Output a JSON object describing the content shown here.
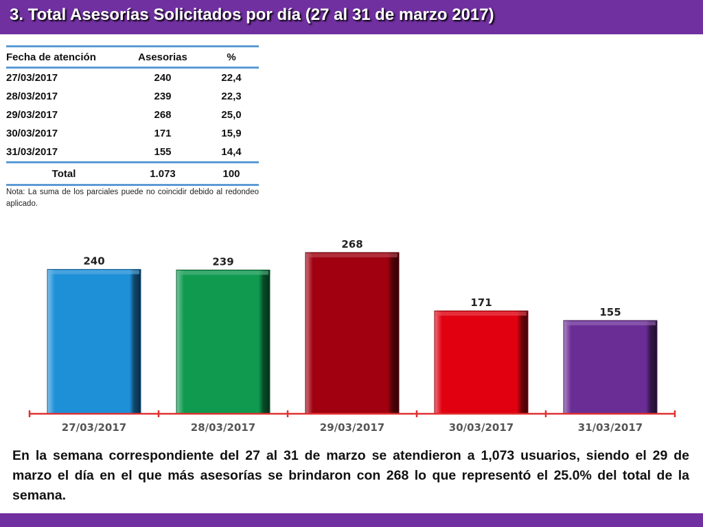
{
  "header": {
    "title": "3.  Total Asesorías Solicitados por día  (27 al 31 de marzo 2017)"
  },
  "table": {
    "headers": [
      "Fecha de atención",
      "Asesorias",
      "%"
    ],
    "rows": [
      [
        "27/03/2017",
        "240",
        "22,4"
      ],
      [
        "28/03/2017",
        "239",
        "22,3"
      ],
      [
        "29/03/2017",
        "268",
        "25,0"
      ],
      [
        "30/03/2017",
        "171",
        "15,9"
      ],
      [
        "31/03/2017",
        "155",
        "14,4"
      ]
    ],
    "total": [
      "Total",
      "1.073",
      "100"
    ]
  },
  "note": "Nota: La suma de los parciales puede no coincidir debido al redondeo aplicado.",
  "chart_data": {
    "type": "bar",
    "categories": [
      "27/03/2017",
      "28/03/2017",
      "29/03/2017",
      "30/03/2017",
      "31/03/2017"
    ],
    "values": [
      240,
      239,
      268,
      171,
      155
    ],
    "data_labels": [
      "240",
      "239",
      "268",
      "171",
      "155"
    ],
    "bar_colors": [
      "#1e90d8",
      "#109a50",
      "#a00010",
      "#e00010",
      "#6a2d96"
    ],
    "axis_color": "#e03030",
    "title": "",
    "xlabel": "",
    "ylabel": "",
    "ylim": [
      0,
      300
    ],
    "grid": false,
    "legend": "none"
  },
  "summary": "En la semana correspondiente del 27 al 31 de marzo se atendieron a 1,073 usuarios, siendo el 29 de marzo el día en el que más asesorías se brindaron con 268 lo que representó el 25.0% del total de la semana.",
  "colors": {
    "header_bg": "#7030a0",
    "table_rule": "#5b9bd5"
  }
}
